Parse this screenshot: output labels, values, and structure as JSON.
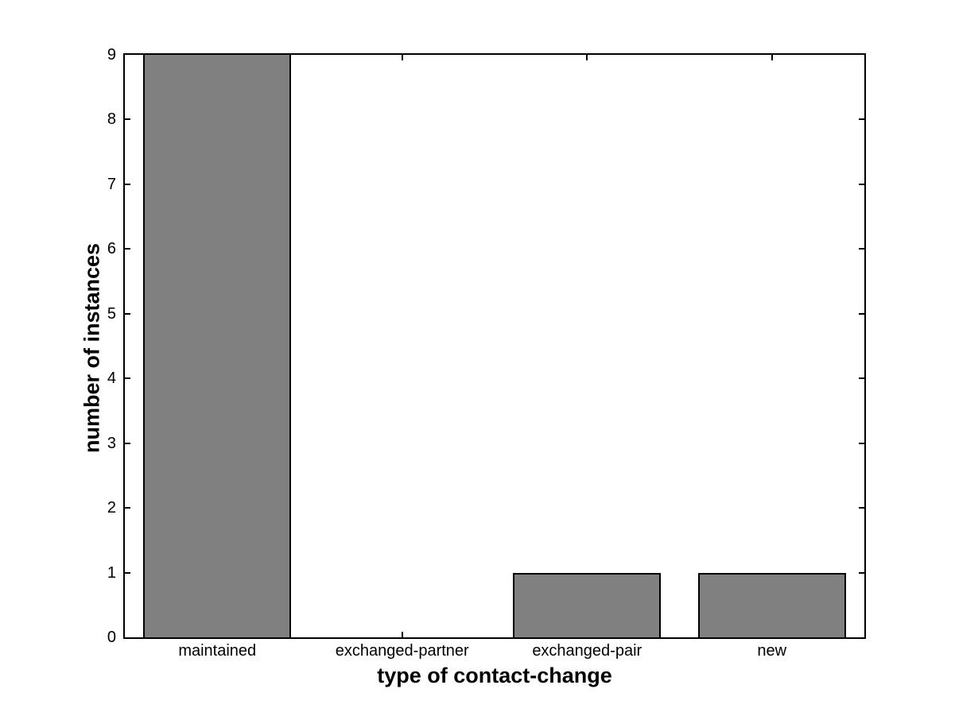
{
  "chart_data": {
    "type": "bar",
    "title": "",
    "xlabel": "type of contact-change",
    "ylabel": "number of instances",
    "categories": [
      "maintained",
      "exchanged-partner",
      "exchanged-pair",
      "new"
    ],
    "values": [
      9,
      0,
      1,
      1
    ],
    "ylim": [
      0,
      9
    ],
    "yticks": [
      0,
      1,
      2,
      3,
      4,
      5,
      6,
      7,
      8,
      9
    ],
    "xlim_units": [
      0.5,
      4.5
    ],
    "bar_width_fraction": 0.8,
    "grid": false,
    "legend": null,
    "tick_direction": "in",
    "box": true,
    "colors": {
      "bar_fill": "#808080",
      "bar_edge": "#000000",
      "axis": "#000000",
      "background": "#ffffff",
      "text": "#000000"
    }
  }
}
